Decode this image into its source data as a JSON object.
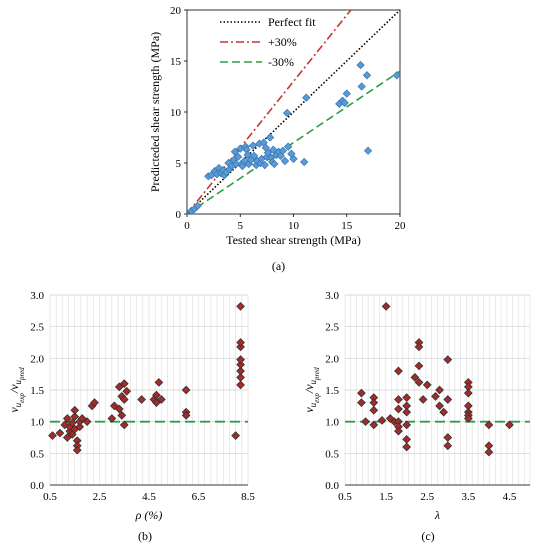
{
  "chart_data": [
    {
      "id": "a",
      "type": "scatter",
      "caption": "(a)",
      "xlabel": "Tested shear strength (MPa)",
      "ylabel": "Predicteded shear strength (MPa)",
      "xlim": [
        0,
        20
      ],
      "ylim": [
        0,
        20
      ],
      "xticks": [
        0,
        5,
        10,
        15,
        20
      ],
      "yticks": [
        0,
        5,
        10,
        15,
        20
      ],
      "grid": false,
      "legend_position": "top-right",
      "lines": [
        {
          "name": "Perfect fit",
          "slope": 1.0,
          "color": "#000000",
          "dash": "1.5,2"
        },
        {
          "name": "+30%",
          "slope": 1.3,
          "color": "#c0392b",
          "dash": "8,3,2,3"
        },
        {
          "name": "-30%",
          "slope": 0.7,
          "color": "#2e9e44",
          "dash": "8,4"
        }
      ],
      "point_color": "#5b9bd5",
      "points": [
        [
          0.4,
          0.3
        ],
        [
          0.7,
          0.5
        ],
        [
          1.0,
          0.8
        ],
        [
          2.0,
          3.7
        ],
        [
          2.3,
          3.8
        ],
        [
          2.6,
          4.2
        ],
        [
          2.8,
          3.9
        ],
        [
          3.0,
          4.5
        ],
        [
          3.2,
          4.0
        ],
        [
          3.4,
          4.3
        ],
        [
          3.5,
          3.8
        ],
        [
          3.7,
          4.1
        ],
        [
          3.9,
          5.0
        ],
        [
          4.0,
          4.4
        ],
        [
          4.2,
          4.7
        ],
        [
          4.4,
          5.3
        ],
        [
          4.5,
          6.1
        ],
        [
          4.6,
          4.9
        ],
        [
          4.8,
          5.6
        ],
        [
          5.0,
          6.4
        ],
        [
          5.1,
          4.9
        ],
        [
          5.2,
          4.7
        ],
        [
          5.4,
          5.2
        ],
        [
          5.5,
          6.6
        ],
        [
          5.6,
          6.3
        ],
        [
          5.7,
          5.8
        ],
        [
          5.8,
          4.9
        ],
        [
          6.0,
          5.3
        ],
        [
          6.2,
          6.7
        ],
        [
          6.3,
          5.7
        ],
        [
          6.5,
          4.8
        ],
        [
          6.6,
          5.2
        ],
        [
          6.8,
          6.9
        ],
        [
          6.9,
          5.0
        ],
        [
          7.0,
          5.4
        ],
        [
          7.2,
          7.0
        ],
        [
          7.3,
          4.8
        ],
        [
          7.4,
          6.5
        ],
        [
          7.5,
          5.6
        ],
        [
          7.6,
          6.0
        ],
        [
          7.8,
          7.5
        ],
        [
          7.9,
          5.5
        ],
        [
          8.0,
          5.1
        ],
        [
          8.1,
          6.3
        ],
        [
          8.2,
          4.9
        ],
        [
          8.4,
          5.8
        ],
        [
          8.6,
          6.1
        ],
        [
          8.8,
          5.7
        ],
        [
          9.0,
          6.2
        ],
        [
          9.2,
          5.2
        ],
        [
          9.4,
          9.9
        ],
        [
          9.5,
          6.6
        ],
        [
          9.8,
          5.9
        ],
        [
          10.0,
          5.4
        ],
        [
          11.0,
          5.1
        ],
        [
          11.2,
          11.4
        ],
        [
          14.3,
          10.8
        ],
        [
          14.6,
          11.1
        ],
        [
          14.8,
          10.9
        ],
        [
          15.0,
          11.8
        ],
        [
          16.3,
          14.6
        ],
        [
          16.4,
          12.5
        ],
        [
          16.9,
          13.6
        ],
        [
          17.0,
          6.2
        ],
        [
          19.7,
          13.6
        ]
      ]
    },
    {
      "id": "b",
      "type": "scatter",
      "caption": "(b)",
      "xlabel": "ρ (%)",
      "ylabel": "v_uexp/v_upred",
      "xlim": [
        0.5,
        8.5
      ],
      "ylim": [
        0.0,
        3.0
      ],
      "xticks": [
        0.5,
        2.5,
        4.5,
        6.5,
        8.5
      ],
      "xtick_labels": [
        "0.5",
        "2.5",
        "4.5",
        "6.5",
        "8.5"
      ],
      "yticks": [
        0.0,
        0.5,
        1.0,
        1.5,
        2.0,
        2.5,
        3.0
      ],
      "ytick_labels": [
        "0.0",
        "0.5",
        "1.0",
        "1.5",
        "2.0",
        "2.5",
        "3.0"
      ],
      "grid": true,
      "reference_line": {
        "y": 1.0,
        "color": "#2e9e44"
      },
      "point_color": "#a52a2a",
      "points": [
        [
          0.6,
          0.78
        ],
        [
          0.9,
          0.82
        ],
        [
          1.1,
          0.95
        ],
        [
          1.2,
          1.05
        ],
        [
          1.2,
          0.75
        ],
        [
          1.3,
          0.85
        ],
        [
          1.3,
          0.92
        ],
        [
          1.4,
          0.98
        ],
        [
          1.4,
          0.8
        ],
        [
          1.5,
          1.08
        ],
        [
          1.5,
          0.88
        ],
        [
          1.5,
          1.18
        ],
        [
          1.6,
          0.7
        ],
        [
          1.6,
          0.62
        ],
        [
          1.6,
          0.55
        ],
        [
          1.7,
          0.92
        ],
        [
          1.7,
          1.0
        ],
        [
          1.8,
          1.05
        ],
        [
          2.0,
          1.0
        ],
        [
          2.2,
          1.25
        ],
        [
          2.3,
          1.3
        ],
        [
          3.0,
          1.05
        ],
        [
          3.1,
          1.25
        ],
        [
          3.3,
          1.55
        ],
        [
          3.3,
          1.2
        ],
        [
          3.4,
          1.4
        ],
        [
          3.4,
          1.1
        ],
        [
          3.5,
          0.95
        ],
        [
          3.5,
          1.6
        ],
        [
          3.5,
          1.35
        ],
        [
          3.6,
          1.48
        ],
        [
          4.2,
          1.35
        ],
        [
          4.7,
          1.35
        ],
        [
          4.8,
          1.3
        ],
        [
          4.8,
          1.42
        ],
        [
          4.9,
          1.62
        ],
        [
          5.0,
          1.35
        ],
        [
          6.0,
          1.5
        ],
        [
          6.0,
          1.15
        ],
        [
          6.0,
          1.1
        ],
        [
          8.0,
          0.78
        ],
        [
          8.2,
          1.58
        ],
        [
          8.2,
          1.7
        ],
        [
          8.2,
          1.8
        ],
        [
          8.2,
          1.9
        ],
        [
          8.2,
          1.98
        ],
        [
          8.2,
          2.18
        ],
        [
          8.2,
          2.25
        ],
        [
          8.2,
          2.82
        ]
      ]
    },
    {
      "id": "c",
      "type": "scatter",
      "caption": "(c)",
      "xlabel": "λ",
      "ylabel": "v_uexp/v_upred",
      "xlim": [
        0.5,
        5.0
      ],
      "ylim": [
        0.0,
        3.0
      ],
      "xticks": [
        0.5,
        1.5,
        2.5,
        3.5,
        4.5
      ],
      "xtick_labels": [
        "0.5",
        "1.5",
        "2.5",
        "3.5",
        "4.5"
      ],
      "yticks": [
        0.0,
        0.5,
        1.0,
        1.5,
        2.0,
        2.5,
        3.0
      ],
      "ytick_labels": [
        "0.0",
        "0.5",
        "1.0",
        "1.5",
        "2.0",
        "2.5",
        "3.0"
      ],
      "grid": true,
      "reference_line": {
        "y": 1.0,
        "color": "#2e9e44"
      },
      "point_color": "#a52a2a",
      "points": [
        [
          0.9,
          1.45
        ],
        [
          0.9,
          1.3
        ],
        [
          1.0,
          1.0
        ],
        [
          1.2,
          1.38
        ],
        [
          1.2,
          1.3
        ],
        [
          1.2,
          1.18
        ],
        [
          1.2,
          0.95
        ],
        [
          1.4,
          1.02
        ],
        [
          1.5,
          2.82
        ],
        [
          1.6,
          1.05
        ],
        [
          1.7,
          1.0
        ],
        [
          1.8,
          1.8
        ],
        [
          1.8,
          1.35
        ],
        [
          1.8,
          1.2
        ],
        [
          1.8,
          1.0
        ],
        [
          1.8,
          0.92
        ],
        [
          1.8,
          0.85
        ],
        [
          2.0,
          1.38
        ],
        [
          2.0,
          1.25
        ],
        [
          2.0,
          1.15
        ],
        [
          2.0,
          0.95
        ],
        [
          2.0,
          0.72
        ],
        [
          2.0,
          0.6
        ],
        [
          2.2,
          1.7
        ],
        [
          2.3,
          2.25
        ],
        [
          2.3,
          2.18
        ],
        [
          2.3,
          1.88
        ],
        [
          2.3,
          1.62
        ],
        [
          2.4,
          1.35
        ],
        [
          2.5,
          1.58
        ],
        [
          2.7,
          1.4
        ],
        [
          2.8,
          1.5
        ],
        [
          2.8,
          1.25
        ],
        [
          2.9,
          1.15
        ],
        [
          3.0,
          1.98
        ],
        [
          3.0,
          1.35
        ],
        [
          3.0,
          0.75
        ],
        [
          3.0,
          0.62
        ],
        [
          3.5,
          1.62
        ],
        [
          3.5,
          1.55
        ],
        [
          3.5,
          1.45
        ],
        [
          3.5,
          1.25
        ],
        [
          3.5,
          1.15
        ],
        [
          3.5,
          1.1
        ],
        [
          3.5,
          1.05
        ],
        [
          4.0,
          0.95
        ],
        [
          4.0,
          0.62
        ],
        [
          4.0,
          0.52
        ],
        [
          4.5,
          0.95
        ]
      ]
    }
  ]
}
